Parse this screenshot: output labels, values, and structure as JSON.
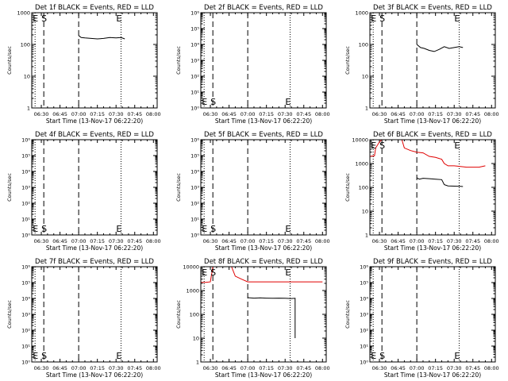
{
  "page_title": "",
  "chart_data": [
    {
      "type": "line",
      "title": "Det 1f BLACK = Events, RED = LLD",
      "xlabel": "Start Time (13-Nov-17 06:22:20)",
      "ylabel": "Counts/sec",
      "y_scale": "log",
      "ylim": [
        1,
        1000
      ],
      "y_tick_labels": [
        "1",
        "10",
        "100",
        "1000"
      ],
      "x_tick_labels": [
        "06:30",
        "06:45",
        "07:00",
        "07:15",
        "07:30",
        "07:45",
        "08:00"
      ],
      "x_tick_minutes": [
        30,
        45,
        60,
        75,
        90,
        105,
        120
      ],
      "x_range_minutes": [
        22.33,
        123
      ],
      "markers": [
        {
          "label": "E",
          "minute": 25
        },
        {
          "label": "S",
          "minute": 32
        }
      ],
      "text_markers": [
        {
          "label": "E",
          "minute": 92
        }
      ],
      "dashed_lines_minutes": [
        32,
        60
      ],
      "dotted_lines_minutes": [
        25,
        94
      ],
      "marker_label_position": "top",
      "series": [
        {
          "color": "#000000",
          "x": [
            60,
            62,
            65,
            70,
            75,
            80,
            85,
            90,
            94,
            97
          ],
          "y": [
            190,
            165,
            160,
            155,
            150,
            155,
            165,
            160,
            165,
            150
          ]
        }
      ]
    },
    {
      "type": "line",
      "title": "Det 2f BLACK = Events, RED = LLD",
      "xlabel": "Start Time (13-Nov-17 06:22:20)",
      "ylabel": "Counts/sec",
      "y_scale": "log",
      "ylim": [
        1,
        1000000
      ],
      "y_tick_labels": [
        "10⁰",
        "10¹",
        "10²",
        "10³",
        "10⁴",
        "10⁵",
        "10⁶"
      ],
      "x_tick_labels": [
        "06:30",
        "06:45",
        "07:00",
        "07:15",
        "07:30",
        "07:45",
        "08:00"
      ],
      "x_tick_minutes": [
        30,
        45,
        60,
        75,
        90,
        105,
        120
      ],
      "x_range_minutes": [
        22.33,
        123
      ],
      "markers": [
        {
          "label": "E",
          "minute": 25
        },
        {
          "label": "S",
          "minute": 32
        }
      ],
      "text_markers": [
        {
          "label": "E",
          "minute": 92
        }
      ],
      "dashed_lines_minutes": [
        32,
        60
      ],
      "dotted_lines_minutes": [
        25,
        94
      ],
      "marker_label_position": "bottom",
      "series": []
    },
    {
      "type": "line",
      "title": "Det 3f BLACK = Events, RED = LLD",
      "xlabel": "Start Time (13-Nov-17 06:22:20)",
      "ylabel": "Counts/sec",
      "y_scale": "log",
      "ylim": [
        1,
        1000
      ],
      "y_tick_labels": [
        "1",
        "10",
        "100",
        "1000"
      ],
      "x_tick_labels": [
        "06:30",
        "06:45",
        "07:00",
        "07:15",
        "07:30",
        "07:45",
        "08:00"
      ],
      "x_tick_minutes": [
        30,
        45,
        60,
        75,
        90,
        105,
        120
      ],
      "x_range_minutes": [
        22.33,
        123
      ],
      "markers": [
        {
          "label": "E",
          "minute": 25
        },
        {
          "label": "S",
          "minute": 32
        }
      ],
      "text_markers": [
        {
          "label": "E",
          "minute": 92
        }
      ],
      "dashed_lines_minutes": [
        32,
        60
      ],
      "dotted_lines_minutes": [
        25,
        94
      ],
      "marker_label_position": "top",
      "series": [
        {
          "color": "#000000",
          "x": [
            60,
            63,
            66,
            70,
            74,
            78,
            82,
            86,
            90,
            94,
            97
          ],
          "y": [
            100,
            80,
            75,
            65,
            60,
            70,
            85,
            75,
            80,
            85,
            80
          ]
        }
      ]
    },
    {
      "type": "line",
      "title": "Det 4f BLACK = Events, RED = LLD",
      "xlabel": "Start Time (13-Nov-17 06:22:20)",
      "ylabel": "Counts/sec",
      "y_scale": "log",
      "ylim": [
        1,
        1000000
      ],
      "y_tick_labels": [
        "10⁰",
        "10¹",
        "10²",
        "10³",
        "10⁴",
        "10⁵",
        "10⁶"
      ],
      "x_tick_labels": [
        "06:30",
        "06:45",
        "07:00",
        "07:15",
        "07:30",
        "07:45",
        "08:00"
      ],
      "x_tick_minutes": [
        30,
        45,
        60,
        75,
        90,
        105,
        120
      ],
      "x_range_minutes": [
        22.33,
        123
      ],
      "markers": [
        {
          "label": "E",
          "minute": 25
        },
        {
          "label": "S",
          "minute": 32
        }
      ],
      "text_markers": [
        {
          "label": "E",
          "minute": 92
        }
      ],
      "dashed_lines_minutes": [
        32,
        60
      ],
      "dotted_lines_minutes": [
        25,
        94
      ],
      "marker_label_position": "bottom",
      "series": []
    },
    {
      "type": "line",
      "title": "Det 5f BLACK = Events, RED = LLD",
      "xlabel": "Start Time (13-Nov-17 06:22:20)",
      "ylabel": "Counts/sec",
      "y_scale": "log",
      "ylim": [
        1,
        1000000
      ],
      "y_tick_labels": [
        "10⁰",
        "10¹",
        "10²",
        "10³",
        "10⁴",
        "10⁵",
        "10⁶"
      ],
      "x_tick_labels": [
        "06:30",
        "06:45",
        "07:00",
        "07:15",
        "07:30",
        "07:45",
        "08:00"
      ],
      "x_tick_minutes": [
        30,
        45,
        60,
        75,
        90,
        105,
        120
      ],
      "x_range_minutes": [
        22.33,
        123
      ],
      "markers": [
        {
          "label": "E",
          "minute": 25
        },
        {
          "label": "S",
          "minute": 32
        }
      ],
      "text_markers": [
        {
          "label": "E",
          "minute": 92
        }
      ],
      "dashed_lines_minutes": [
        32,
        60
      ],
      "dotted_lines_minutes": [
        25,
        94
      ],
      "marker_label_position": "bottom",
      "series": []
    },
    {
      "type": "line",
      "title": "Det 6f BLACK = Events, RED = LLD",
      "xlabel": "Start Time (13-Nov-17 06:22:20)",
      "ylabel": "Counts/sec",
      "y_scale": "log",
      "ylim": [
        1,
        10000
      ],
      "y_tick_labels": [
        "1",
        "10",
        "100",
        "1000",
        "10000"
      ],
      "x_tick_labels": [
        "06:30",
        "06:45",
        "07:00",
        "07:15",
        "07:30",
        "07:45",
        "08:00"
      ],
      "x_tick_minutes": [
        30,
        45,
        60,
        75,
        90,
        105,
        120
      ],
      "x_range_minutes": [
        22.33,
        123
      ],
      "markers": [
        {
          "label": "E",
          "minute": 25
        },
        {
          "label": "S",
          "minute": 32
        }
      ],
      "text_markers": [
        {
          "label": "E",
          "minute": 92
        }
      ],
      "dashed_lines_minutes": [
        32,
        60
      ],
      "dotted_lines_minutes": [
        25,
        94
      ],
      "marker_label_position": "top",
      "series": [
        {
          "color": "#000000",
          "x": [
            60,
            62,
            65,
            70,
            75,
            80,
            82,
            85,
            90,
            95,
            97
          ],
          "y": [
            250,
            220,
            240,
            230,
            220,
            210,
            130,
            115,
            112,
            110,
            108
          ]
        },
        {
          "color": "#e00000",
          "x": [
            22.33,
            26,
            27,
            30,
            32,
            40,
            48,
            50,
            55,
            60,
            65,
            70,
            75,
            80,
            82,
            85,
            90,
            95,
            100,
            105,
            110,
            115
          ],
          "y": [
            2000,
            2100,
            4500,
            8000,
            10000,
            10000,
            10000,
            4500,
            3500,
            3000,
            2800,
            2000,
            1800,
            1500,
            1000,
            800,
            800,
            750,
            700,
            700,
            700,
            800
          ]
        }
      ]
    },
    {
      "type": "line",
      "title": "Det 7f BLACK = Events, RED = LLD",
      "xlabel": "Start Time (13-Nov-17 06:22:20)",
      "ylabel": "Counts/sec",
      "y_scale": "log",
      "ylim": [
        1,
        1000000
      ],
      "y_tick_labels": [
        "10⁰",
        "10¹",
        "10²",
        "10³",
        "10⁴",
        "10⁵",
        "10⁶"
      ],
      "x_tick_labels": [
        "06:30",
        "06:45",
        "07:00",
        "07:15",
        "07:30",
        "07:45",
        "08:00"
      ],
      "x_tick_minutes": [
        30,
        45,
        60,
        75,
        90,
        105,
        120
      ],
      "x_range_minutes": [
        22.33,
        123
      ],
      "markers": [
        {
          "label": "E",
          "minute": 25
        },
        {
          "label": "S",
          "minute": 32
        }
      ],
      "text_markers": [
        {
          "label": "E",
          "minute": 92
        }
      ],
      "dashed_lines_minutes": [
        32,
        60
      ],
      "dotted_lines_minutes": [
        25,
        94
      ],
      "marker_label_position": "bottom",
      "series": []
    },
    {
      "type": "line",
      "title": "Det 8f BLACK = Events, RED = LLD",
      "xlabel": "Start Time (13-Nov-17 06:22:20)",
      "ylabel": "Counts/sec",
      "y_scale": "log",
      "ylim": [
        1,
        10000
      ],
      "y_tick_labels": [
        "1",
        "10",
        "100",
        "1000",
        "10000"
      ],
      "x_tick_labels": [
        "06:30",
        "06:45",
        "07:00",
        "07:15",
        "07:30",
        "07:45",
        "08:00"
      ],
      "x_tick_minutes": [
        30,
        45,
        60,
        75,
        90,
        105,
        120
      ],
      "x_range_minutes": [
        22.33,
        123
      ],
      "markers": [
        {
          "label": "E",
          "minute": 25
        },
        {
          "label": "S",
          "minute": 32
        }
      ],
      "text_markers": [
        {
          "label": "E",
          "minute": 92
        }
      ],
      "dashed_lines_minutes": [
        32,
        60
      ],
      "dotted_lines_minutes": [
        25,
        94
      ],
      "marker_label_position": "top",
      "series": [
        {
          "color": "#000000",
          "x": [
            60,
            65,
            70,
            75,
            80,
            85,
            90,
            95,
            98,
            98
          ],
          "y": [
            500,
            480,
            490,
            480,
            470,
            480,
            470,
            460,
            470,
            10
          ]
        },
        {
          "color": "#e00000",
          "x": [
            22.33,
            26,
            30,
            32,
            40,
            47,
            50,
            55,
            60,
            70,
            80,
            90,
            100,
            110,
            120
          ],
          "y": [
            2200,
            2200,
            2300,
            10000,
            10000,
            10000,
            4000,
            3000,
            2300,
            2300,
            2300,
            2300,
            2300,
            2300,
            2300
          ]
        }
      ]
    },
    {
      "type": "line",
      "title": "Det 9f BLACK = Events, RED = LLD",
      "xlabel": "Start Time (13-Nov-17 06:22:20)",
      "ylabel": "Counts/sec",
      "y_scale": "log",
      "ylim": [
        1,
        1000000
      ],
      "y_tick_labels": [
        "10⁰",
        "10¹",
        "10²",
        "10³",
        "10⁴",
        "10⁵",
        "10⁶"
      ],
      "x_tick_labels": [
        "06:30",
        "06:45",
        "07:00",
        "07:15",
        "07:30",
        "07:45",
        "08:00"
      ],
      "x_tick_minutes": [
        30,
        45,
        60,
        75,
        90,
        105,
        120
      ],
      "x_range_minutes": [
        22.33,
        123
      ],
      "markers": [
        {
          "label": "E",
          "minute": 25
        },
        {
          "label": "S",
          "minute": 32
        }
      ],
      "text_markers": [
        {
          "label": "E",
          "minute": 92
        }
      ],
      "dashed_lines_minutes": [
        32,
        60
      ],
      "dotted_lines_minutes": [
        25,
        94
      ],
      "marker_label_position": "bottom",
      "series": []
    }
  ]
}
